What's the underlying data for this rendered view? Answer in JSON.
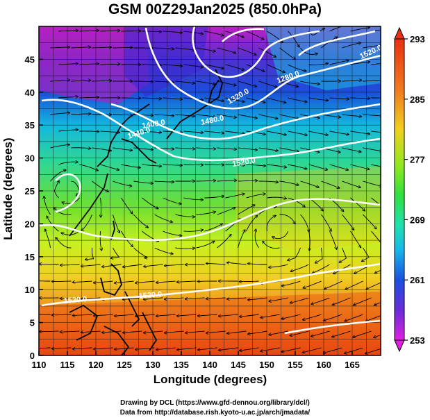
{
  "title": "GSM 00Z29Jan2025 (850.0hPa)",
  "axes": {
    "xlabel": "Longitude (degrees)",
    "ylabel": "Latitude  (degrees)",
    "xticks": [
      "110",
      "115",
      "120",
      "125",
      "130",
      "135",
      "140",
      "145",
      "150",
      "155",
      "160",
      "165"
    ],
    "yticks": [
      "0",
      "5",
      "10",
      "15",
      "20",
      "25",
      "30",
      "35",
      "40",
      "45"
    ],
    "xlim": [
      110,
      170
    ],
    "ylim": [
      0,
      50
    ]
  },
  "colorbar": {
    "ticks": [
      "293",
      "285",
      "277",
      "269",
      "261",
      "253"
    ],
    "range": [
      253,
      293
    ],
    "colors": [
      "#e020e0",
      "#7a2fd8",
      "#1f1fc8",
      "#1f6fe8",
      "#18c8e8",
      "#20e0a0",
      "#48e020",
      "#b8f020",
      "#f0e020",
      "#f0a020",
      "#f07010",
      "#e83010"
    ]
  },
  "contours": [
    {
      "label": "1400.0"
    },
    {
      "label": "1440.0"
    },
    {
      "label": "1480.0"
    },
    {
      "label": "1520.0"
    },
    {
      "label": "1520.0"
    },
    {
      "label": "1520.0"
    },
    {
      "label": "1520.0"
    },
    {
      "label": "1280.0"
    },
    {
      "label": "1320.0"
    }
  ],
  "credits": {
    "line1": "Drawing by DCL (https://www.gfd-dennou.org/library/dcl/)",
    "line2": "Data from http://database.rish.kyoto-u.ac.jp/arch/jmadata/"
  }
}
